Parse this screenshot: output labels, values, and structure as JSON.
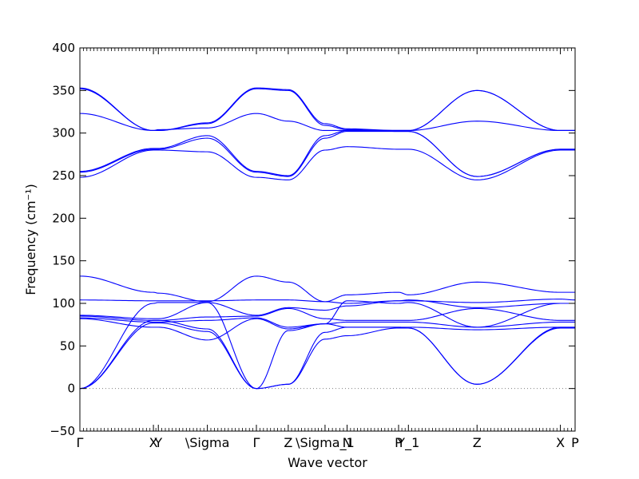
{
  "chart_data": {
    "type": "line",
    "xlabel": "Wave vector",
    "ylabel": "Frequency (cm⁻¹)",
    "ylim": [
      -50,
      400
    ],
    "yticks": [
      -50,
      0,
      50,
      100,
      150,
      200,
      250,
      300,
      350,
      400
    ],
    "grid": false,
    "line_color": "#0000ff",
    "zero_line": {
      "y": 0,
      "style": "dotted",
      "color": "#808080"
    },
    "high_point_ticks": [
      {
        "x": 0.0,
        "label": "Γ"
      },
      {
        "x": 1.5,
        "label": "X"
      },
      {
        "x": 1.6,
        "label": "Y"
      },
      {
        "x": 2.6,
        "label": "\\Sigma"
      },
      {
        "x": 3.6,
        "label": "Γ"
      },
      {
        "x": 4.25,
        "label": "Z"
      },
      {
        "x": 5.0,
        "label": "\\Sigma_1"
      },
      {
        "x": 5.45,
        "label": "N"
      },
      {
        "x": 6.5,
        "label": "P"
      },
      {
        "x": 6.7,
        "label": "Y_1"
      },
      {
        "x": 8.1,
        "label": "Z"
      },
      {
        "x": 9.8,
        "label": "X"
      },
      {
        "x": 10.1,
        "label": "P"
      }
    ],
    "xlim": [
      0,
      10.1
    ],
    "series": [
      {
        "values": [
          [
            0,
            353
          ],
          [
            1.5,
            303
          ],
          [
            1.6,
            303
          ],
          [
            2.6,
            312
          ],
          [
            3.6,
            353
          ],
          [
            4.25,
            351
          ],
          [
            5.0,
            311
          ],
          [
            5.45,
            305
          ],
          [
            6.5,
            303
          ],
          [
            6.7,
            303
          ],
          [
            8.1,
            350
          ],
          [
            9.8,
            303
          ],
          [
            10.1,
            303
          ]
        ]
      },
      {
        "values": [
          [
            0,
            352
          ],
          [
            1.5,
            303
          ],
          [
            1.6,
            303
          ],
          [
            2.6,
            311
          ],
          [
            3.6,
            352
          ],
          [
            4.25,
            350
          ],
          [
            5.0,
            309
          ],
          [
            5.45,
            304
          ],
          [
            6.5,
            303
          ],
          [
            6.7,
            303
          ],
          [
            8.1,
            350
          ],
          [
            9.8,
            303
          ],
          [
            10.1,
            303
          ]
        ]
      },
      {
        "values": [
          [
            0,
            323
          ],
          [
            1.5,
            303
          ],
          [
            1.6,
            304
          ],
          [
            2.6,
            306
          ],
          [
            3.6,
            323
          ],
          [
            4.25,
            314
          ],
          [
            5.0,
            303
          ],
          [
            5.45,
            303
          ],
          [
            6.5,
            303
          ],
          [
            6.7,
            303
          ],
          [
            8.1,
            314
          ],
          [
            9.8,
            303
          ],
          [
            10.1,
            303
          ]
        ]
      },
      {
        "values": [
          [
            0,
            255
          ],
          [
            1.5,
            282
          ],
          [
            1.6,
            282
          ],
          [
            2.6,
            297
          ],
          [
            3.6,
            255
          ],
          [
            4.25,
            250
          ],
          [
            5.0,
            297
          ],
          [
            5.45,
            303
          ],
          [
            6.5,
            302
          ],
          [
            6.7,
            302
          ],
          [
            8.1,
            249
          ],
          [
            9.8,
            281
          ],
          [
            10.1,
            281
          ]
        ]
      },
      {
        "values": [
          [
            0,
            254
          ],
          [
            1.5,
            281
          ],
          [
            1.6,
            281
          ],
          [
            2.6,
            294
          ],
          [
            3.6,
            254
          ],
          [
            4.25,
            249
          ],
          [
            5.0,
            294
          ],
          [
            5.45,
            302
          ],
          [
            6.5,
            302
          ],
          [
            6.7,
            302
          ],
          [
            8.1,
            249
          ],
          [
            9.8,
            281
          ],
          [
            10.1,
            281
          ]
        ]
      },
      {
        "values": [
          [
            0,
            248
          ],
          [
            1.5,
            280
          ],
          [
            1.6,
            280
          ],
          [
            2.6,
            278
          ],
          [
            3.6,
            248
          ],
          [
            4.25,
            245
          ],
          [
            5.0,
            280
          ],
          [
            5.45,
            284
          ],
          [
            6.5,
            281
          ],
          [
            6.7,
            281
          ],
          [
            8.1,
            245
          ],
          [
            9.8,
            280
          ],
          [
            10.1,
            280
          ]
        ]
      },
      {
        "values": [
          [
            0,
            132
          ],
          [
            1.5,
            113
          ],
          [
            1.6,
            112
          ],
          [
            2.6,
            102
          ],
          [
            3.6,
            132
          ],
          [
            4.25,
            125
          ],
          [
            5.0,
            102
          ],
          [
            5.45,
            110
          ],
          [
            6.5,
            113
          ],
          [
            6.7,
            110
          ],
          [
            8.1,
            125
          ],
          [
            9.8,
            113
          ],
          [
            10.1,
            113
          ]
        ]
      },
      {
        "values": [
          [
            0,
            104
          ],
          [
            1.5,
            103
          ],
          [
            1.6,
            103
          ],
          [
            2.6,
            103
          ],
          [
            3.6,
            104
          ],
          [
            4.25,
            104
          ],
          [
            5.0,
            102
          ],
          [
            5.45,
            100
          ],
          [
            6.5,
            103
          ],
          [
            6.7,
            103
          ],
          [
            8.1,
            101
          ],
          [
            9.8,
            105
          ],
          [
            10.1,
            104
          ]
        ]
      },
      {
        "values": [
          [
            0,
            86
          ],
          [
            1.5,
            82
          ],
          [
            1.6,
            82
          ],
          [
            2.6,
            101
          ],
          [
            3.6,
            86
          ],
          [
            4.25,
            95
          ],
          [
            5.0,
            92
          ],
          [
            5.45,
            97
          ],
          [
            6.5,
            103
          ],
          [
            6.7,
            104
          ],
          [
            8.1,
            95
          ],
          [
            9.8,
            100
          ],
          [
            10.1,
            100
          ]
        ]
      },
      {
        "values": [
          [
            0,
            85
          ],
          [
            1.5,
            80
          ],
          [
            1.6,
            80
          ],
          [
            2.6,
            84
          ],
          [
            3.6,
            85
          ],
          [
            4.25,
            94
          ],
          [
            5.0,
            82
          ],
          [
            5.45,
            80
          ],
          [
            6.5,
            80
          ],
          [
            6.7,
            80
          ],
          [
            8.1,
            94
          ],
          [
            9.8,
            80
          ],
          [
            10.1,
            80
          ]
        ]
      },
      {
        "values": [
          [
            0,
            83
          ],
          [
            1.5,
            78
          ],
          [
            1.6,
            78
          ],
          [
            2.6,
            80
          ],
          [
            3.6,
            83
          ],
          [
            4.25,
            72
          ],
          [
            5.0,
            76
          ],
          [
            5.45,
            78
          ],
          [
            6.5,
            78
          ],
          [
            6.7,
            78
          ],
          [
            8.1,
            72
          ],
          [
            9.8,
            78
          ],
          [
            10.1,
            78
          ]
        ]
      },
      {
        "values": [
          [
            0,
            82
          ],
          [
            1.5,
            72
          ],
          [
            1.6,
            72
          ],
          [
            2.6,
            57
          ],
          [
            3.6,
            82
          ],
          [
            4.25,
            70
          ],
          [
            5.0,
            76
          ],
          [
            5.45,
            72
          ],
          [
            6.5,
            72
          ],
          [
            6.7,
            72
          ],
          [
            8.1,
            69
          ],
          [
            9.8,
            72
          ],
          [
            10.1,
            72
          ]
        ]
      },
      {
        "values": [
          [
            0,
            0
          ],
          [
            1.5,
            100
          ],
          [
            1.6,
            101
          ],
          [
            2.6,
            101
          ],
          [
            3.6,
            0
          ],
          [
            4.25,
            68
          ],
          [
            5.0,
            76
          ],
          [
            5.45,
            103
          ],
          [
            6.5,
            100
          ],
          [
            6.7,
            101
          ],
          [
            8.1,
            72
          ],
          [
            9.8,
            100
          ],
          [
            10.1,
            100
          ]
        ]
      },
      {
        "values": [
          [
            0,
            0
          ],
          [
            1.5,
            80
          ],
          [
            1.6,
            80
          ],
          [
            2.6,
            70
          ],
          [
            3.6,
            0
          ],
          [
            4.25,
            5
          ],
          [
            5.0,
            66
          ],
          [
            5.45,
            72
          ],
          [
            6.5,
            72
          ],
          [
            6.7,
            71
          ],
          [
            8.1,
            5
          ],
          [
            9.8,
            72
          ],
          [
            10.1,
            72
          ]
        ]
      },
      {
        "values": [
          [
            0,
            0
          ],
          [
            1.5,
            77
          ],
          [
            1.6,
            77
          ],
          [
            2.6,
            67
          ],
          [
            3.6,
            0
          ],
          [
            4.25,
            5
          ],
          [
            5.0,
            58
          ],
          [
            5.45,
            62
          ],
          [
            6.5,
            71
          ],
          [
            6.7,
            71
          ],
          [
            8.1,
            5
          ],
          [
            9.8,
            71
          ],
          [
            10.1,
            71
          ]
        ]
      }
    ]
  }
}
